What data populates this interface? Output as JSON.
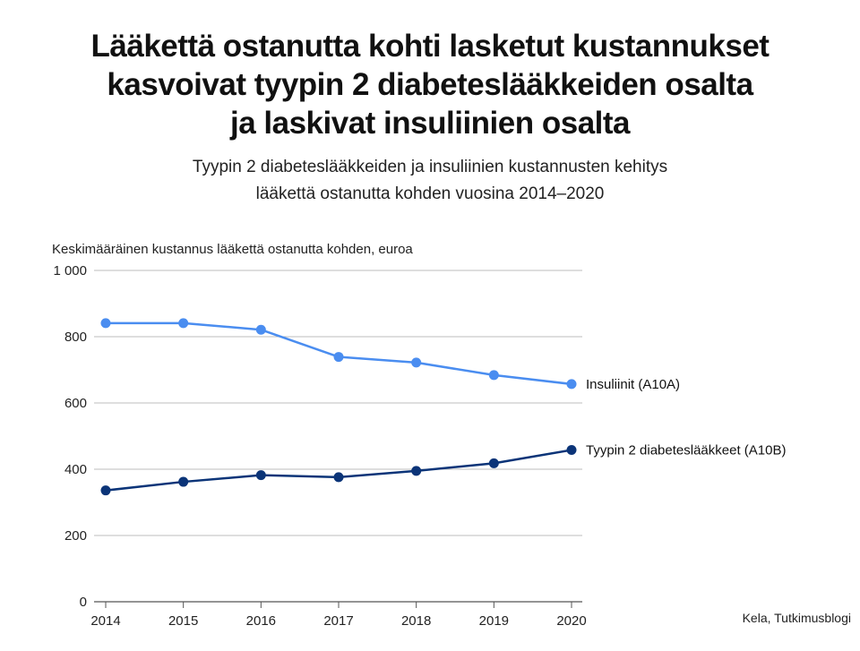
{
  "title_lines": [
    "Lääkettä ostanutta kohti lasketut kustannukset",
    "kasvoivat tyypin 2 diabeteslääkkeiden osalta",
    "ja laskivat insuliinien osalta"
  ],
  "subtitle_lines": [
    "Tyypin 2 diabeteslääkkeiden ja insuliinien kustannusten kehitys",
    "lääkettä ostanutta kohden vuosina 2014–2020"
  ],
  "source": "Kela, Tutkimusblogi",
  "chart_data": {
    "type": "line",
    "title": "Lääkettä ostanutta kohti lasketut kustannukset kasvoivat tyypin 2 diabeteslääkkeiden osalta ja laskivat insuliinien osalta",
    "subtitle": "Tyypin 2 diabeteslääkkeiden ja insuliinien kustannusten kehitys lääkettä ostanutta kohden vuosina 2014–2020",
    "ylabel": "Keskimääräinen kustannus lääkettä ostanutta kohden, euroa",
    "xlabel": "",
    "x": [
      "2014",
      "2015",
      "2016",
      "2017",
      "2018",
      "2019",
      "2020"
    ],
    "ylim": [
      0,
      1000
    ],
    "yticks": [
      0,
      200,
      400,
      600,
      800,
      1000
    ],
    "ytick_labels": [
      "0",
      "200",
      "400",
      "600",
      "800",
      "1 000"
    ],
    "grid": true,
    "legend": "direct labels at line ends",
    "series": [
      {
        "name": "Insuliinit (A10A)",
        "color": "#4a8df0",
        "values": [
          841,
          841,
          821,
          739,
          722,
          684,
          657
        ]
      },
      {
        "name": "Tyypin 2 diabeteslääkkeet (A10B)",
        "color": "#0b3478",
        "values": [
          336,
          362,
          382,
          376,
          395,
          418,
          458
        ]
      }
    ]
  }
}
